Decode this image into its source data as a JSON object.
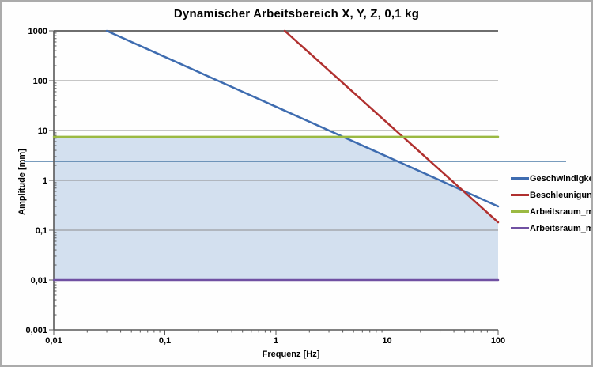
{
  "chart_data": {
    "type": "line",
    "title": "Dynamischer Arbeitsbereich X, Y, Z, 0,1 kg",
    "xlabel": "Frequenz [Hz]",
    "ylabel": "Amplitude [mm]",
    "x_scale": "log",
    "y_scale": "log",
    "xlim": [
      0.01,
      100
    ],
    "ylim": [
      0.001,
      1000
    ],
    "grid": "horizontal-major",
    "legend_position": "right",
    "x_ticks": [
      {
        "value": 0.01,
        "label": "0,01"
      },
      {
        "value": 0.1,
        "label": "0,1"
      },
      {
        "value": 1,
        "label": "1"
      },
      {
        "value": 10,
        "label": "10"
      },
      {
        "value": 100,
        "label": "100"
      }
    ],
    "y_ticks": [
      {
        "value": 1000,
        "label": "1000"
      },
      {
        "value": 100,
        "label": "100"
      },
      {
        "value": 10,
        "label": "10"
      },
      {
        "value": 1,
        "label": "1"
      },
      {
        "value": 0.1,
        "label": "0,1"
      },
      {
        "value": 0.01,
        "label": "0,01"
      },
      {
        "value": 0.001,
        "label": "0,001"
      }
    ],
    "series": [
      {
        "name": "Geschwindigkeit",
        "color": "#3e6cb0",
        "width": 2.5,
        "relation": "A = 30/f (slope -1 in log-log)",
        "points": [
          [
            0.03,
            1000
          ],
          [
            0.1,
            300
          ],
          [
            1,
            30
          ],
          [
            10,
            3
          ],
          [
            100,
            0.3
          ]
        ]
      },
      {
        "name": "Beschleunigung",
        "color": "#b0302f",
        "width": 2.5,
        "relation": "A = 1440/f^2 (slope -2 in log-log)",
        "points": [
          [
            1.2,
            1000
          ],
          [
            10,
            14.4
          ],
          [
            48,
            0.625
          ],
          [
            100,
            0.144
          ]
        ]
      },
      {
        "name": "Arbeitsraum_max",
        "color": "#9bb942",
        "width": 2.5,
        "relation": "A = 7.5 (constant)",
        "points": [
          [
            0.01,
            7.5
          ],
          [
            100,
            7.5
          ]
        ]
      },
      {
        "name": "Arbeitsraum_min",
        "color": "#7050a2",
        "width": 2.5,
        "relation": "A = 0.01 (constant)",
        "points": [
          [
            0.01,
            0.01
          ],
          [
            100,
            0.01
          ]
        ]
      }
    ],
    "shaded_region": {
      "color": "#d3e0ef",
      "vertices": [
        [
          0.01,
          0.01
        ],
        [
          0.01,
          7.5
        ],
        [
          4,
          7.5
        ],
        [
          48,
          0.625
        ],
        [
          100,
          0.144
        ],
        [
          100,
          0.01
        ]
      ]
    },
    "annotation_line": {
      "value": 2.4,
      "color": "#4d7ba7",
      "width": 1.5
    }
  },
  "colors": {
    "gridline": "#8d8d8d",
    "gridline_top": "#6e6e6e",
    "axis": "#595959",
    "page_border": "#ababab",
    "background": "#fefefe"
  }
}
